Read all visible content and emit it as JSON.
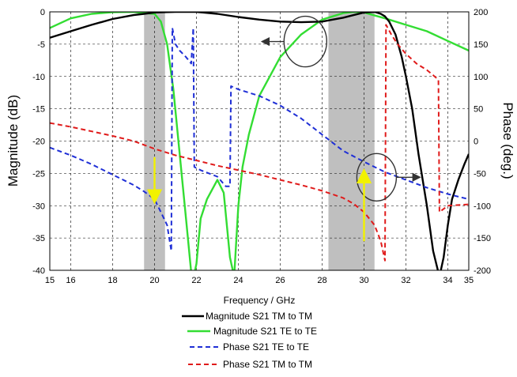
{
  "chart_data": {
    "type": "line",
    "xlabel": "Frequency / GHz",
    "ylabel_left": "Magnitude (dB)",
    "ylabel_right": "Phase (deg.)",
    "xlim": [
      15,
      35
    ],
    "ylim_left": [
      -40,
      0
    ],
    "ylim_right": [
      -200,
      200
    ],
    "x_ticks": [
      "15",
      "16",
      "18",
      "20",
      "22",
      "24",
      "26",
      "28",
      "30",
      "32",
      "34",
      "35"
    ],
    "x_tick_values": [
      15,
      16,
      18,
      20,
      22,
      24,
      26,
      28,
      30,
      32,
      34,
      35
    ],
    "y_ticks_left": [
      "0",
      "-5",
      "-10",
      "-15",
      "-20",
      "-25",
      "-30",
      "-35",
      "-40"
    ],
    "y_tick_values_left": [
      0,
      -5,
      -10,
      -15,
      -20,
      -25,
      -30,
      -35,
      -40
    ],
    "y_ticks_right": [
      "200",
      "150",
      "100",
      "50",
      "0",
      "-50",
      "-100",
      "-150",
      "-200"
    ],
    "y_tick_values_right": [
      200,
      150,
      100,
      50,
      0,
      -50,
      -100,
      -150,
      -200
    ],
    "grid": true,
    "shaded_bands": [
      [
        19.5,
        20.5
      ],
      [
        28.3,
        30.5
      ]
    ],
    "colors": {
      "tm_mag": "#000000",
      "te_mag": "#33dd33",
      "te_phase": "#1f2fd6",
      "tm_phase": "#e01b1b",
      "band": "#bfbfbf",
      "arrow_yellow": "#f2f200",
      "circle": "#333333"
    },
    "series": [
      {
        "name": "Magnitude S21 TM to TM",
        "axis": "left",
        "style": "solid",
        "x": [
          15,
          16,
          17,
          18,
          19,
          19.5,
          20,
          21,
          22,
          23,
          24,
          25,
          26,
          27,
          28,
          28.5,
          29,
          29.5,
          30,
          30.5,
          30.8,
          31,
          31.2,
          31.5,
          31.8,
          32,
          32.3,
          32.6,
          33,
          33.3,
          33.6,
          33.8,
          34,
          34.2,
          34.5,
          34.8,
          35
        ],
        "y": [
          -4,
          -3.0,
          -2.0,
          -1.1,
          -0.5,
          -0.3,
          -0.1,
          0,
          0,
          -0.3,
          -0.8,
          -1.2,
          -1.5,
          -1.6,
          -1.5,
          -1.2,
          -0.9,
          -0.5,
          -0.1,
          0,
          -0.3,
          -0.7,
          -1.5,
          -3.5,
          -7,
          -10,
          -15,
          -22,
          -30,
          -37,
          -41,
          -38,
          -33,
          -29,
          -26,
          -23.5,
          -22
        ]
      },
      {
        "name": "Magnitude S21 TE to TE",
        "axis": "left",
        "style": "solid",
        "x": [
          15,
          16,
          17,
          18,
          19,
          19.5,
          20,
          20.3,
          20.6,
          20.9,
          21.2,
          21.5,
          21.8,
          22.0,
          22.2,
          22.5,
          23,
          23.3,
          23.6,
          23.8,
          24.0,
          24.2,
          24.5,
          25,
          26,
          27,
          28,
          29,
          29.5,
          30,
          31,
          32,
          33,
          34,
          35
        ],
        "y": [
          -2.5,
          -1.0,
          -0.3,
          -0.05,
          0,
          -0.2,
          -0.3,
          -1.5,
          -5,
          -12,
          -22,
          -32,
          -42,
          -39,
          -32,
          -29,
          -26,
          -28,
          -38,
          -41,
          -30,
          -24,
          -19,
          -13,
          -7,
          -3.5,
          -1.2,
          -0.2,
          0,
          -0.1,
          -1,
          -2,
          -3,
          -4.5,
          -6
        ]
      },
      {
        "name": "Phase S21 TE to TE",
        "axis": "right",
        "style": "dashed",
        "x": [
          15,
          16,
          17,
          18,
          19,
          19.5,
          20,
          20.3,
          20.6,
          20.8,
          20.85,
          21.0,
          21.2,
          21.5,
          21.75,
          21.85,
          21.9,
          22.2,
          22.6,
          23.0,
          23.4,
          23.6,
          23.65,
          24,
          25,
          26,
          27,
          28,
          29,
          30,
          31,
          32,
          33,
          34,
          35
        ],
        "y": [
          -10,
          -22,
          -36,
          -52,
          -68,
          -78,
          -90,
          -110,
          -130,
          -170,
          175,
          150,
          140,
          130,
          120,
          175,
          -40,
          -45,
          -50,
          -55,
          -70,
          -70,
          85,
          80,
          70,
          55,
          35,
          10,
          -15,
          -32,
          -48,
          -60,
          -72,
          -82,
          -90
        ]
      },
      {
        "name": "Phase S21 TM to TM",
        "axis": "right",
        "style": "dashed",
        "x": [
          15,
          16,
          17,
          18,
          19,
          20,
          21,
          22,
          23,
          24,
          25,
          26,
          27,
          28,
          29,
          29.5,
          30,
          30.5,
          30.8,
          31.0,
          31.05,
          31.3,
          31.6,
          32,
          32.5,
          33,
          33.3,
          33.55,
          33.6,
          34,
          35
        ],
        "y": [
          28,
          22,
          15,
          8,
          0,
          -12,
          -22,
          -30,
          -38,
          -45,
          -52,
          -60,
          -68,
          -77,
          -88,
          -97,
          -110,
          -130,
          -155,
          -185,
          180,
          165,
          150,
          135,
          120,
          110,
          102,
          95,
          -110,
          -100,
          -98
        ]
      }
    ],
    "legend": {
      "placement": "bottom-center",
      "entries": [
        "Magnitude S21 TM to TM",
        "Magnitude S21 TE to TE",
        "Phase S21 TE to TE",
        "Phase S21 TM to TM"
      ]
    },
    "annotations": {
      "circle_left_center": [
        27.2,
        -4.6
      ],
      "circle_right_center": [
        30.6,
        -25.6
      ],
      "yellow_arrow_left": {
        "x": 20.0,
        "y_from": -22.5,
        "y_to": -29.5
      },
      "yellow_arrow_right": {
        "x": 30.0,
        "y_from": -35.5,
        "y_to": -24.5
      }
    }
  }
}
